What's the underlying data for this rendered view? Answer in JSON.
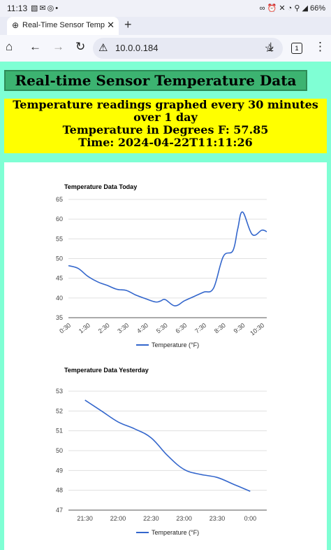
{
  "status_bar": {
    "time": "11:13",
    "battery": "66%",
    "left_icons": [
      "gallery-icon",
      "mail-icon",
      "sync-icon",
      "dot-icon"
    ],
    "right_icons": [
      "link-icon",
      "alarm-icon",
      "mute-icon",
      "wifi-icon",
      "location-icon",
      "signal-icon"
    ]
  },
  "tabs": [
    {
      "title": "Real-Time Sensor Temperat"
    }
  ],
  "toolbar": {
    "url": "10.0.0.184",
    "tab_count": "1"
  },
  "page": {
    "banner_title": "Real-time Sensor Temperature Data",
    "subtitle": "Temperature readings graphed every 30 minutes over 1 day",
    "current_temp": "Temperature in Degrees F: 57.85",
    "current_time": "Time: 2024-04-22T11:11:26"
  },
  "chart_data": [
    {
      "type": "line",
      "title": "Temperature Data Today",
      "ylim": [
        35,
        65
      ],
      "yticks": [
        35,
        40,
        45,
        50,
        55,
        60,
        65
      ],
      "xlim": [
        0.5,
        10.75
      ],
      "xticks": [
        0.5,
        1.5,
        2.5,
        3.5,
        4.5,
        5.5,
        6.5,
        7.5,
        8.5,
        9.5,
        10.5
      ],
      "xtick_labels": [
        "0:30",
        "1:30",
        "2:30",
        "3:30",
        "4:30",
        "5:30",
        "6:30",
        "7:30",
        "8:30",
        "9:30",
        "10:30"
      ],
      "legend": "bottom",
      "series": [
        {
          "name": "Temperature (°F)",
          "color": "#3366cc",
          "x": [
            0.5,
            1.0,
            1.5,
            2.0,
            2.5,
            3.0,
            3.5,
            4.0,
            4.5,
            5.0,
            5.25,
            5.5,
            6.0,
            6.5,
            7.0,
            7.5,
            8.0,
            8.5,
            9.0,
            9.25,
            9.5,
            10.0,
            10.5,
            10.75
          ],
          "y": [
            48.2,
            47.5,
            45.5,
            44.1,
            43.2,
            42.2,
            41.9,
            40.7,
            39.8,
            39.0,
            39.2,
            39.6,
            38.0,
            39.3,
            40.4,
            41.5,
            42.5,
            50.5,
            52.0,
            57.5,
            61.8,
            56.1,
            57.2,
            56.8
          ]
        }
      ]
    },
    {
      "type": "line",
      "title": "Temperature Data Yesterday",
      "ylim": [
        47,
        53
      ],
      "yticks": [
        47,
        48,
        49,
        50,
        51,
        52,
        53
      ],
      "xlim": [
        21.25,
        24.25
      ],
      "xticks": [
        21.5,
        22.0,
        22.5,
        23.0,
        23.5,
        24.0
      ],
      "xtick_labels": [
        "21:30",
        "22:00",
        "22:30",
        "23:00",
        "23:30",
        "0:00"
      ],
      "legend": "bottom",
      "series": [
        {
          "name": "Temperature (°F)",
          "color": "#3366cc",
          "x": [
            21.5,
            21.75,
            22.0,
            22.25,
            22.5,
            22.75,
            23.0,
            23.25,
            23.5,
            23.75,
            24.0
          ],
          "y": [
            52.55,
            52.0,
            51.45,
            51.1,
            50.65,
            49.75,
            49.05,
            48.8,
            48.65,
            48.3,
            47.95
          ]
        }
      ]
    }
  ]
}
